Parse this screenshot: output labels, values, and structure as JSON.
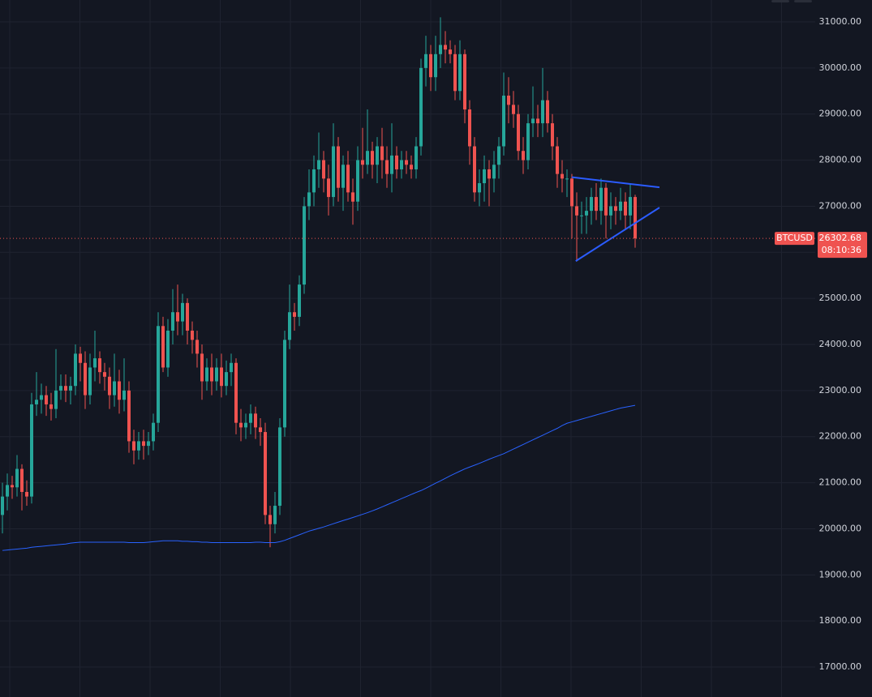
{
  "chart_data": {
    "type": "candlestick",
    "symbol": "BTCUSD",
    "last_price": 26302.68,
    "countdown": "08:10:36",
    "up_color": "#26a69a",
    "down_color": "#ef5350",
    "grid": true,
    "ylim": [
      16350,
      31475
    ],
    "yticks": [
      {
        "value": 17000,
        "label": "17000.00"
      },
      {
        "value": 18000,
        "label": "18000.00"
      },
      {
        "value": 19000,
        "label": "19000.00"
      },
      {
        "value": 20000,
        "label": "20000.00"
      },
      {
        "value": 21000,
        "label": "21000.00"
      },
      {
        "value": 22000,
        "label": "22000.00"
      },
      {
        "value": 23000,
        "label": "23000.00"
      },
      {
        "value": 24000,
        "label": "24000.00"
      },
      {
        "value": 25000,
        "label": "25000.00"
      },
      {
        "value": 26000,
        "label": "26000.00"
      },
      {
        "value": 27000,
        "label": "27000.00"
      },
      {
        "value": 28000,
        "label": "28000.00"
      },
      {
        "value": 29000,
        "label": "29000.00"
      },
      {
        "value": 30000,
        "label": "30000.00"
      },
      {
        "value": 31000,
        "label": "31000.00"
      }
    ],
    "open": [
      20300,
      20700,
      20950,
      20900,
      21300,
      20800,
      20700,
      22700,
      22800,
      22900,
      22700,
      22600,
      23000,
      23100,
      23000,
      23100,
      23800,
      23600,
      22900,
      23500,
      23700,
      23400,
      23300,
      22900,
      23200,
      22800,
      23000,
      21900,
      21700,
      21900,
      21800,
      21900,
      22300,
      24400,
      23500,
      24300,
      24700,
      24500,
      24900,
      24300,
      24100,
      23800,
      23200,
      23500,
      23200,
      23500,
      23100,
      23400,
      23600,
      22300,
      22200,
      22300,
      22500,
      22200,
      22100,
      20300,
      20100,
      20500,
      22200,
      24100,
      24700,
      24600,
      25300,
      27000,
      27300,
      27800,
      28000,
      27600,
      27200,
      28300,
      27400,
      27900,
      27300,
      27100,
      28000,
      27900,
      28200,
      27900,
      28300,
      28000,
      27700,
      28100,
      27800,
      28000,
      27900,
      27800,
      28300,
      30000,
      30300,
      29800,
      30300,
      30500,
      30400,
      30300,
      29500,
      30300,
      29100,
      28300,
      27300,
      27500,
      27800,
      27600,
      27900,
      28300,
      29400,
      29200,
      29000,
      28200,
      28000,
      28800,
      28900,
      28800,
      29300,
      28800,
      28300,
      27700,
      27600,
      27600,
      27000,
      26800,
      26800,
      26900,
      27200,
      26900,
      27400,
      26800,
      27000,
      26900,
      27100,
      26800,
      27200
    ],
    "high": [
      21000,
      21200,
      21150,
      21600,
      21400,
      21050,
      22950,
      23400,
      23150,
      23100,
      22950,
      23900,
      23350,
      23350,
      23300,
      24000,
      23950,
      23850,
      23800,
      24300,
      23850,
      23600,
      23500,
      23800,
      23450,
      23700,
      23200,
      22150,
      22100,
      22150,
      22100,
      22500,
      24700,
      24600,
      24550,
      25200,
      25300,
      25100,
      25000,
      24500,
      24300,
      24000,
      23700,
      23800,
      23700,
      23800,
      23650,
      23800,
      23700,
      22600,
      22500,
      22700,
      22650,
      22400,
      22300,
      20500,
      20800,
      22400,
      24300,
      25300,
      24900,
      25500,
      27200,
      27800,
      28100,
      28600,
      28200,
      27900,
      28800,
      28500,
      28100,
      28200,
      27600,
      28300,
      28700,
      29100,
      28400,
      28500,
      28700,
      28300,
      28800,
      28300,
      28200,
      28200,
      28100,
      28500,
      30200,
      30700,
      30500,
      30700,
      31100,
      30800,
      30600,
      30500,
      30600,
      30400,
      29300,
      28500,
      27800,
      28100,
      28000,
      28200,
      28500,
      29900,
      29800,
      29500,
      29200,
      28500,
      29000,
      29600,
      29200,
      30000,
      29500,
      29000,
      28500,
      28000,
      27800,
      27700,
      27300,
      27100,
      27200,
      27400,
      27500,
      27600,
      27500,
      27300,
      27200,
      27400,
      27300,
      27500,
      27250
    ],
    "low": [
      19900,
      20400,
      20650,
      20700,
      20400,
      20500,
      20550,
      22450,
      22500,
      22450,
      22350,
      22400,
      22800,
      22750,
      22700,
      22900,
      23200,
      22600,
      22700,
      23200,
      23150,
      23000,
      22600,
      22650,
      22500,
      22550,
      21650,
      21400,
      21500,
      21500,
      21600,
      21700,
      22100,
      23400,
      23300,
      24000,
      24200,
      24200,
      24000,
      23800,
      23500,
      22800,
      23000,
      22900,
      23000,
      22850,
      22900,
      23100,
      22050,
      21900,
      21950,
      22050,
      21950,
      21800,
      20100,
      19600,
      19900,
      20300,
      22000,
      23900,
      24300,
      24400,
      25100,
      26700,
      27000,
      27400,
      27300,
      26800,
      27000,
      27100,
      26900,
      27100,
      26600,
      26900,
      27600,
      27700,
      27600,
      27500,
      27600,
      27400,
      27300,
      27600,
      27600,
      27700,
      27600,
      27600,
      28100,
      29600,
      29500,
      29500,
      30000,
      30100,
      30100,
      29300,
      29300,
      28800,
      27900,
      27100,
      27000,
      27100,
      27000,
      27300,
      27600,
      28100,
      28800,
      28700,
      28000,
      27700,
      27800,
      28500,
      28500,
      28500,
      28600,
      28000,
      27400,
      27300,
      27200,
      26300,
      25800,
      26400,
      26400,
      26600,
      26700,
      26600,
      26300,
      26500,
      26600,
      26700,
      26500,
      26500,
      26100
    ],
    "close": [
      20700,
      20950,
      20900,
      21300,
      20800,
      20700,
      22700,
      22800,
      22900,
      22700,
      22600,
      23000,
      23100,
      23000,
      23100,
      23800,
      23600,
      22900,
      23500,
      23700,
      23400,
      23300,
      22900,
      23200,
      22800,
      23000,
      21900,
      21700,
      21900,
      21800,
      21900,
      22300,
      24400,
      23500,
      24300,
      24700,
      24500,
      24900,
      24300,
      24100,
      23800,
      23200,
      23500,
      23200,
      23500,
      23100,
      23400,
      23600,
      22300,
      22200,
      22300,
      22500,
      22200,
      22100,
      20300,
      20100,
      20500,
      22200,
      24100,
      24700,
      24600,
      25300,
      27000,
      27300,
      27800,
      28000,
      27600,
      27200,
      28300,
      27400,
      27900,
      27300,
      27100,
      28000,
      27900,
      28200,
      27900,
      28300,
      28000,
      27700,
      28100,
      27800,
      28000,
      27900,
      27800,
      28300,
      30000,
      30300,
      29800,
      30300,
      30500,
      30400,
      30300,
      29500,
      30300,
      29100,
      28300,
      27300,
      27500,
      27800,
      27600,
      27900,
      28300,
      29400,
      29200,
      29000,
      28200,
      28000,
      28800,
      28900,
      28800,
      29300,
      28800,
      28300,
      27700,
      27600,
      27600,
      27000,
      26800,
      26800,
      26900,
      27200,
      26900,
      27400,
      26800,
      27000,
      26900,
      27100,
      26800,
      27200,
      26302.68
    ],
    "ma": {
      "color": "#2962ff",
      "values": [
        19530,
        19540,
        19550,
        19560,
        19570,
        19580,
        19600,
        19610,
        19620,
        19630,
        19640,
        19650,
        19660,
        19670,
        19690,
        19700,
        19710,
        19710,
        19710,
        19710,
        19710,
        19710,
        19710,
        19710,
        19710,
        19710,
        19700,
        19700,
        19700,
        19700,
        19710,
        19720,
        19730,
        19740,
        19740,
        19740,
        19740,
        19730,
        19730,
        19720,
        19720,
        19710,
        19710,
        19700,
        19700,
        19700,
        19700,
        19700,
        19700,
        19700,
        19700,
        19700,
        19710,
        19710,
        19700,
        19700,
        19700,
        19720,
        19750,
        19790,
        19830,
        19870,
        19910,
        19950,
        19980,
        20010,
        20040,
        20075,
        20110,
        20145,
        20180,
        20210,
        20245,
        20280,
        20315,
        20350,
        20390,
        20430,
        20475,
        20520,
        20565,
        20610,
        20655,
        20700,
        20745,
        20790,
        20830,
        20880,
        20935,
        20990,
        21040,
        21095,
        21150,
        21200,
        21250,
        21300,
        21340,
        21380,
        21420,
        21465,
        21510,
        21550,
        21590,
        21630,
        21680,
        21730,
        21780,
        21830,
        21880,
        21930,
        21980,
        22030,
        22080,
        22130,
        22180,
        22240,
        22290,
        22320,
        22350,
        22380,
        22410,
        22440,
        22470,
        22500,
        22530,
        22560,
        22590,
        22620,
        22640,
        22660,
        22680
      ]
    },
    "trendlines": {
      "color": "#2b5cff",
      "lines": [
        {
          "start": [
            117,
            27630
          ],
          "end": [
            135,
            27410
          ]
        },
        {
          "start": [
            117.8,
            25810
          ],
          "end": [
            135,
            26970
          ]
        }
      ]
    }
  }
}
